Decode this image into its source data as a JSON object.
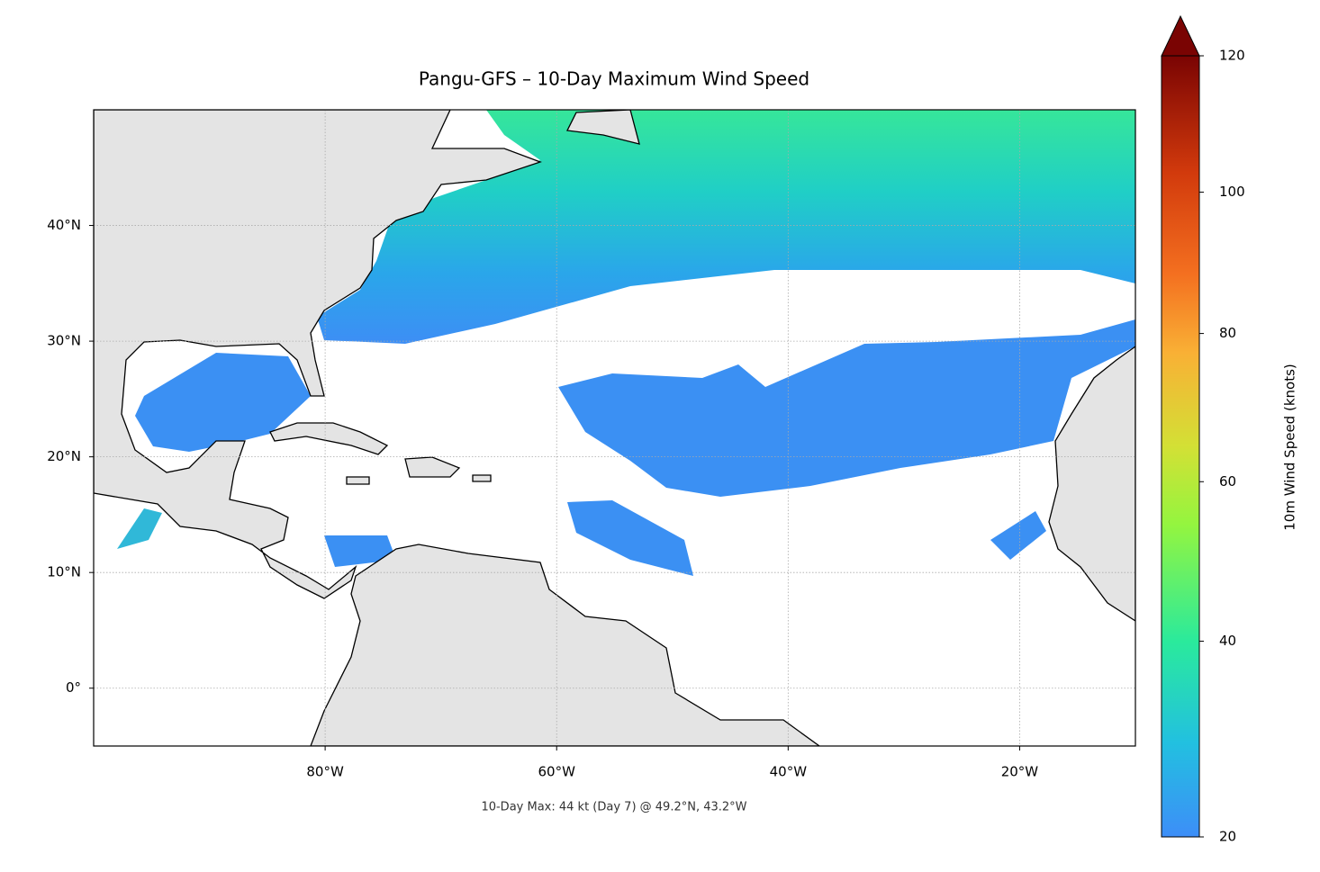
{
  "chart_data": {
    "type": "map",
    "title": "Pangu-GFS – 10-Day Maximum Wind Speed",
    "annotation": "10-Day Max: 44 kt (Day 7) @ 49.2°N, 43.2°W",
    "xlim": [
      -100,
      -10
    ],
    "ylim": [
      -5,
      50
    ],
    "xticks": [
      {
        "value": -80,
        "label": "80°W"
      },
      {
        "value": -60,
        "label": "60°W"
      },
      {
        "value": -40,
        "label": "40°W"
      },
      {
        "value": -20,
        "label": "20°W"
      }
    ],
    "yticks": [
      {
        "value": 0,
        "label": "0°"
      },
      {
        "value": 10,
        "label": "10°N"
      },
      {
        "value": 20,
        "label": "20°N"
      },
      {
        "value": 30,
        "label": "30°N"
      },
      {
        "value": 40,
        "label": "40°N"
      }
    ],
    "grid": true,
    "colorbar": {
      "label": "10m Wind Speed (knots)",
      "lim": [
        20,
        120
      ],
      "ticks": [
        20,
        40,
        60,
        80,
        100,
        120
      ],
      "extend": "max"
    }
  }
}
